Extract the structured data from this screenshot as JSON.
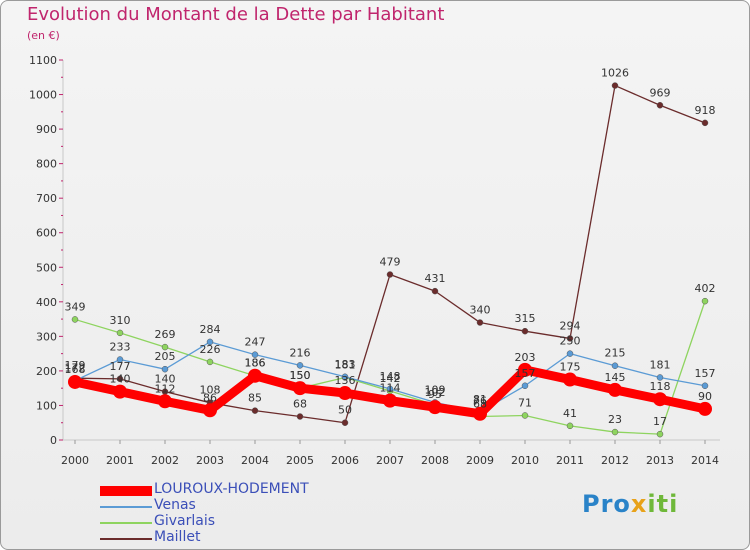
{
  "header": {
    "title": "Evolution du Montant de la Dette par Habitant",
    "unit": "(en €)"
  },
  "logo": {
    "part1": "Pro",
    "part2": "x",
    "part3": "iti"
  },
  "chart_data": {
    "type": "line",
    "title": "Evolution du Montant de la Dette par Habitant",
    "subtitle": "(en €)",
    "ylim": [
      0,
      1100
    ],
    "yticks": [
      0,
      100,
      200,
      300,
      400,
      500,
      600,
      700,
      800,
      900,
      1000,
      1100
    ],
    "grid": false,
    "legend_position": "bottom-left",
    "x": [
      "2000",
      "2001",
      "2002",
      "2003",
      "2004",
      "2005",
      "2006",
      "2007",
      "2008",
      "2009",
      "2010",
      "2011",
      "2012",
      "2013",
      "2014"
    ],
    "series": [
      {
        "name": "LOUROUX-HODEMENT",
        "color": "#ff0000",
        "values": [
          168,
          140,
          112,
          86,
          186,
          150,
          136,
          114,
          95,
          76,
          203,
          175,
          145,
          118,
          90
        ]
      },
      {
        "name": "Venas",
        "color": "#5b9bd5",
        "values": [
          172,
          233,
          205,
          284,
          247,
          216,
          183,
          148,
          109,
          81,
          157,
          250,
          215,
          181,
          157
        ]
      },
      {
        "name": "Givarlais",
        "color": "#8ed45f",
        "values": [
          349,
          310,
          269,
          226,
          186,
          150,
          181,
          142,
          102,
          68,
          71,
          41,
          23,
          17,
          402
        ]
      },
      {
        "name": "Maillet",
        "color": "#6b2c2c",
        "values": [
          179,
          177,
          140,
          108,
          85,
          68,
          50,
          479,
          431,
          340,
          315,
          294,
          1026,
          969,
          918
        ]
      }
    ]
  }
}
